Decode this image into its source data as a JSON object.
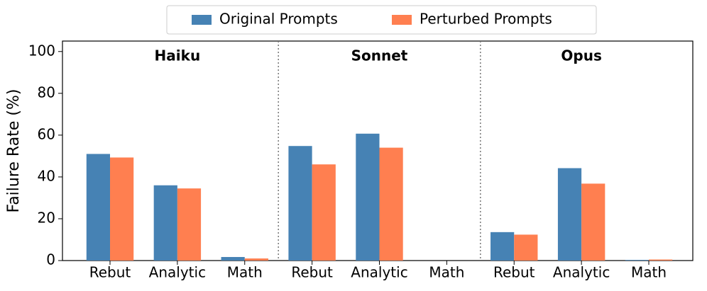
{
  "chart_data": {
    "type": "bar",
    "ylabel": "Failure Rate (%)",
    "categories": [
      "Rebut",
      "Analytic",
      "Math",
      "Rebut",
      "Analytic",
      "Math",
      "Rebut",
      "Analytic",
      "Math"
    ],
    "groups": [
      "Haiku",
      "Sonnet",
      "Opus"
    ],
    "series": [
      {
        "name": "Original Prompts",
        "color": "#4682b4",
        "values": [
          51,
          36,
          1.7,
          54.8,
          60.7,
          0,
          13.6,
          44.2,
          0.3
        ]
      },
      {
        "name": "Perturbed Prompts",
        "color": "#ff7f50",
        "values": [
          49.3,
          34.5,
          1.0,
          46,
          54,
          0,
          12.4,
          36.8,
          0.5
        ]
      }
    ],
    "ylim": [
      0,
      105
    ],
    "yticks": [
      0,
      20,
      40,
      60,
      80,
      100
    ],
    "legend": "top"
  }
}
